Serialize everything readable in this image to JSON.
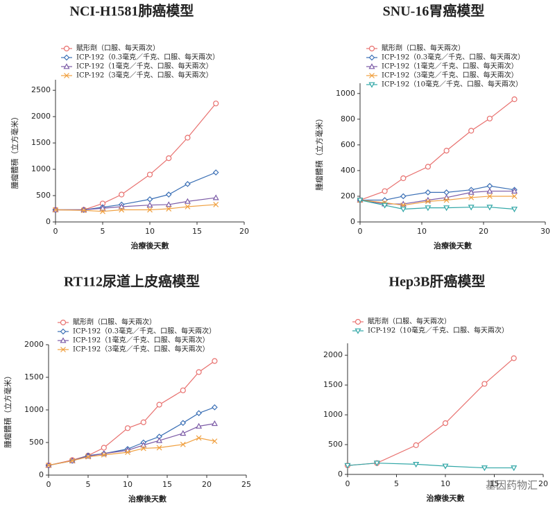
{
  "chart_data": [
    {
      "type": "line",
      "title": "NCI-H1581肺癌模型",
      "x_label": "治療後天數",
      "y_label": "腫瘤體積（立方毫米）",
      "x": [
        0,
        3,
        5,
        7,
        10,
        12,
        14,
        17
      ],
      "xlim": [
        0,
        20
      ],
      "xticks": [
        0,
        5,
        10,
        15,
        20
      ],
      "ylim": [
        0,
        2700
      ],
      "yticks": [
        0,
        500,
        1000,
        1500,
        2000,
        2500
      ],
      "series": [
        {
          "name": "賦形劑（口服、每天兩次）",
          "color": "#e8706e",
          "marker": "circle",
          "values": [
            230,
            230,
            350,
            520,
            900,
            1210,
            1600,
            2250
          ]
        },
        {
          "name": "ICP-192（0.3毫克／千克、口服、每天兩次）",
          "color": "#3a6fb5",
          "marker": "diamond",
          "values": [
            230,
            230,
            280,
            330,
            430,
            520,
            720,
            940
          ]
        },
        {
          "name": "ICP-192（1毫克／千克、口服、每天兩次）",
          "color": "#7b5aa6",
          "marker": "triangle-up",
          "values": [
            230,
            230,
            260,
            290,
            320,
            330,
            390,
            460
          ]
        },
        {
          "name": "ICP-192（3毫克／千克、口服、每天兩次）",
          "color": "#f0a040",
          "marker": "x",
          "values": [
            230,
            220,
            200,
            230,
            230,
            250,
            290,
            330
          ]
        }
      ]
    },
    {
      "type": "line",
      "title": "SNU-16胃癌模型",
      "x_label": "治療後天數",
      "y_label": "腫瘤體積（立方毫米）",
      "x": [
        0,
        4,
        7,
        11,
        14,
        18,
        21,
        25
      ],
      "xlim": [
        0,
        30
      ],
      "xticks": [
        0,
        10,
        20,
        30
      ],
      "ylim": [
        0,
        1080
      ],
      "yticks": [
        0,
        200,
        400,
        600,
        800,
        1000
      ],
      "series": [
        {
          "name": "賦形劑（口服、每天兩次）",
          "color": "#e8706e",
          "marker": "circle",
          "values": [
            170,
            240,
            340,
            430,
            555,
            710,
            805,
            955
          ]
        },
        {
          "name": "ICP-192（0.3毫克／千克、口服、每天兩次）",
          "color": "#3a6fb5",
          "marker": "diamond",
          "values": [
            170,
            170,
            200,
            230,
            230,
            250,
            280,
            250
          ]
        },
        {
          "name": "ICP-192（1毫克／千克、口服、每天兩次）",
          "color": "#7b5aa6",
          "marker": "triangle-up",
          "values": [
            170,
            140,
            140,
            170,
            190,
            230,
            240,
            240
          ]
        },
        {
          "name": "ICP-192（3毫克／千克、口服、每天兩次）",
          "color": "#f0a040",
          "marker": "x",
          "values": [
            170,
            150,
            130,
            160,
            170,
            190,
            200,
            200
          ]
        },
        {
          "name": "ICP-192（10毫克／千克、口服、每天兩次）",
          "color": "#2fa6a6",
          "marker": "triangle-down",
          "values": [
            170,
            130,
            100,
            110,
            110,
            115,
            115,
            100
          ]
        }
      ]
    },
    {
      "type": "line",
      "title": "RT112尿道上皮癌模型",
      "x_label": "治療後天數",
      "y_label": "腫瘤體積（立方毫米）",
      "x": [
        0,
        3,
        5,
        7,
        10,
        12,
        14,
        17,
        19,
        21
      ],
      "xlim": [
        0,
        25
      ],
      "xticks": [
        0,
        5,
        10,
        15,
        20,
        25
      ],
      "ylim": [
        0,
        2000
      ],
      "yticks": [
        0,
        500,
        1000,
        1500,
        2000
      ],
      "series": [
        {
          "name": "賦形劑（口服、每天兩次）",
          "color": "#e8706e",
          "marker": "circle",
          "values": [
            150,
            230,
            300,
            420,
            720,
            810,
            1080,
            1300,
            1580,
            1750
          ]
        },
        {
          "name": "ICP-192（0.3毫克／千克、口服、每天兩次）",
          "color": "#3a6fb5",
          "marker": "diamond",
          "values": [
            150,
            220,
            300,
            330,
            400,
            500,
            590,
            800,
            950,
            1040
          ]
        },
        {
          "name": "ICP-192（1毫克／千克、口服、每天兩次）",
          "color": "#7b5aa6",
          "marker": "triangle-up",
          "values": [
            150,
            220,
            290,
            330,
            380,
            460,
            530,
            640,
            750,
            790
          ]
        },
        {
          "name": "ICP-192（3毫克／千克、口服、每天兩次）",
          "color": "#f0a040",
          "marker": "x",
          "values": [
            150,
            220,
            280,
            310,
            350,
            410,
            420,
            470,
            570,
            520
          ]
        }
      ]
    },
    {
      "type": "line",
      "title": "Hep3B肝癌模型",
      "x_label": "治療後天數",
      "x": [
        0,
        3,
        7,
        10,
        14,
        17
      ],
      "xlim": [
        0,
        20
      ],
      "xticks": [
        0,
        5,
        10,
        15,
        20
      ],
      "ylim": [
        0,
        2200
      ],
      "yticks": [
        0,
        500,
        1000,
        1500,
        2000
      ],
      "series": [
        {
          "name": "賦形劑（口服、每天兩次）",
          "color": "#e8706e",
          "marker": "circle",
          "values": [
            150,
            190,
            490,
            860,
            1520,
            1950
          ]
        },
        {
          "name": "ICP-192（10毫克／千克、口服、每天兩次）",
          "color": "#2fa6a6",
          "marker": "triangle-down",
          "values": [
            150,
            190,
            170,
            140,
            110,
            110
          ]
        }
      ]
    }
  ],
  "watermark": "基因药物汇"
}
